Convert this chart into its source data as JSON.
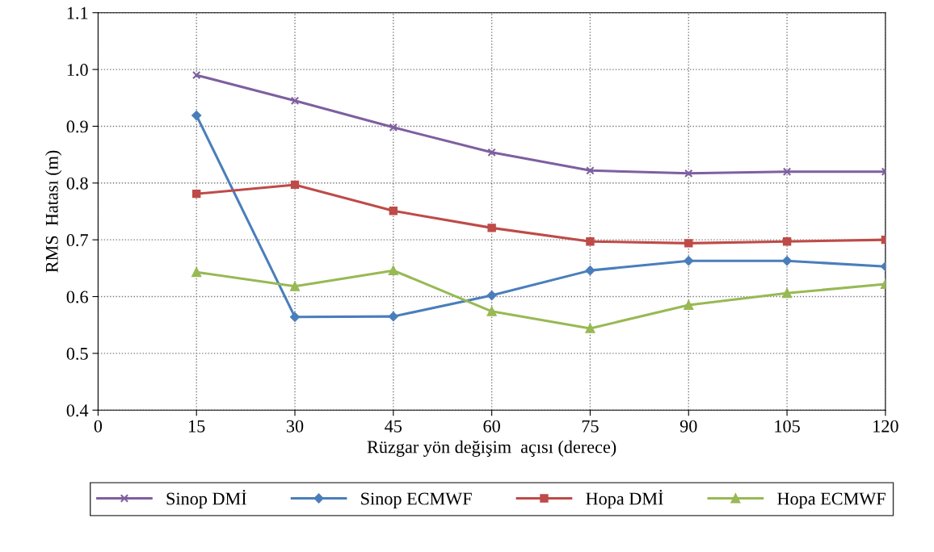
{
  "chart_data": {
    "type": "line",
    "xlabel": "Rüzgar yön değişim  açısı (derece)",
    "ylabel": "RMS  Hatası (m)",
    "x": [
      15,
      30,
      45,
      60,
      75,
      90,
      105,
      120
    ],
    "xlim": [
      0,
      120
    ],
    "xticks": [
      0,
      15,
      30,
      45,
      60,
      75,
      90,
      105,
      120
    ],
    "ylim": [
      0.4,
      1.1
    ],
    "yticks": [
      {
        "value": 0.4,
        "label": "0.4"
      },
      {
        "value": 0.5,
        "label": "0.5"
      },
      {
        "value": 0.6,
        "label": "0.6"
      },
      {
        "value": 0.7,
        "label": "0.7"
      },
      {
        "value": 0.8,
        "label": "0.8"
      },
      {
        "value": 0.9,
        "label": "0.9"
      },
      {
        "value": 1.0,
        "label": "1.0"
      },
      {
        "value": 1.1,
        "label": "1.1"
      }
    ],
    "grid": true,
    "legend": "bottom",
    "line_style": "solid",
    "series": [
      {
        "name": "Sinop DMİ",
        "color": "#7e5fa0",
        "marker": "cross",
        "values": [
          0.99,
          0.945,
          0.898,
          0.854,
          0.822,
          0.817,
          0.82,
          0.82
        ]
      },
      {
        "name": "Sinop ECMWF",
        "color": "#4a7ebb",
        "marker": "diamond",
        "values": [
          0.919,
          0.564,
          0.565,
          0.602,
          0.646,
          0.663,
          0.663,
          0.653
        ]
      },
      {
        "name": "Hopa DMİ",
        "color": "#be4b48",
        "marker": "square",
        "values": [
          0.781,
          0.797,
          0.751,
          0.721,
          0.697,
          0.694,
          0.697,
          0.7
        ]
      },
      {
        "name": "Hopa ECMWF",
        "color": "#98b954",
        "marker": "triangle",
        "values": [
          0.643,
          0.618,
          0.646,
          0.574,
          0.544,
          0.585,
          0.606,
          0.622
        ]
      }
    ]
  }
}
